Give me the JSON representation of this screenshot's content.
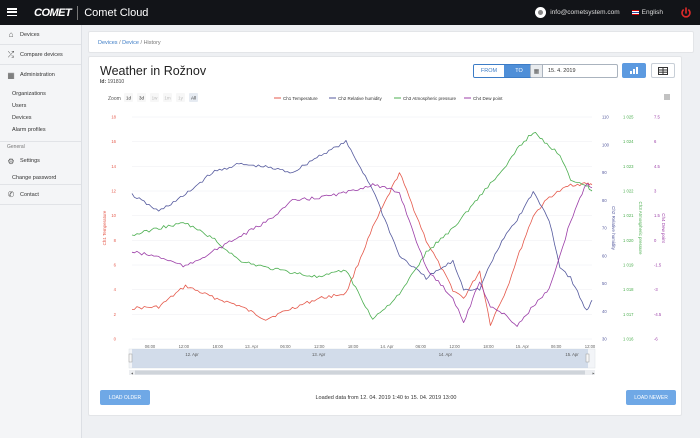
{
  "header": {
    "logo_text": "COMET",
    "app_name": "Comet Cloud",
    "email": "info@cometsystem.com",
    "language": "English"
  },
  "sidebar": {
    "items": [
      {
        "label": "Devices",
        "icon": "home-icon"
      },
      {
        "label": "Compare devices",
        "icon": "compare-icon"
      },
      {
        "label": "Administration",
        "icon": "grid-icon"
      }
    ],
    "admin_sub": [
      "Organizations",
      "Users",
      "Devices",
      "Alarm profiles"
    ],
    "general_label": "General",
    "settings_label": "Settings",
    "change_password": "Change password",
    "contact_label": "Contact"
  },
  "breadcrumb": {
    "devices": "Devices",
    "device": "Device",
    "history": "History"
  },
  "page": {
    "title": "Weather in Rožnov",
    "id_label": "Id:",
    "id_value": "191810",
    "from_label": "FROM",
    "to_label": "TO",
    "date_value": "15. 4. 2019",
    "footer_text": "Loaded data from 12. 04. 2019 1:40 to 15. 04. 2019 13:00",
    "load_older": "LOAD OLDER",
    "load_newer": "LOAD NEWER"
  },
  "chart_data": {
    "type": "line",
    "zoom_label": "Zoom",
    "zoom_options": [
      "1d",
      "3d",
      "1w",
      "1m",
      "1y",
      "All"
    ],
    "selected_zoom": "All",
    "x_ticks": [
      "06:00",
      "12:00",
      "18:00",
      "13. Apr",
      "06:00",
      "12:00",
      "18:00",
      "14. Apr",
      "06:00",
      "12:00",
      "18:00",
      "15. Apr",
      "06:00",
      "12:00"
    ],
    "navigator_ticks": [
      "12. Apr",
      "13. Apr",
      "14. Apr",
      "15. Apr"
    ],
    "x_hours": [
      0,
      5,
      10,
      15,
      20,
      25,
      30,
      35,
      40,
      45,
      50,
      55,
      60,
      62,
      65,
      67,
      70,
      72,
      75,
      78,
      80,
      82,
      85,
      86
    ],
    "axes": [
      {
        "name": "Ch1 Temperature",
        "unit_label": "Ch1 Temperature",
        "ticks": [
          "18",
          "16",
          "14",
          "12",
          "10",
          "8",
          "6",
          "4",
          "2",
          "0"
        ],
        "min": 0,
        "max": 18,
        "color": "#e55a4c"
      },
      {
        "name": "Ch2 Relative humidity",
        "unit_label": "Ch2 Relative humidity",
        "ticks": [
          "110",
          "100",
          "90",
          "80",
          "70",
          "60",
          "50",
          "40",
          "30"
        ],
        "min": 30,
        "max": 110,
        "color": "#555a9e"
      },
      {
        "name": "Ch3 Atmospheric pressure",
        "unit_label": "Ch3 Atmospheric pressure",
        "ticks": [
          "1 025",
          "1 024",
          "1 023",
          "1 022",
          "1 021",
          "1 020",
          "1 019",
          "1 018",
          "1 017",
          "1 016"
        ],
        "min": 1016,
        "max": 1025,
        "color": "#4caf50"
      },
      {
        "name": "Ch4 Dew point",
        "unit_label": "Ch4 Dew point",
        "ticks": [
          "7.5",
          "6",
          "4.5",
          "3",
          "1.5",
          "0",
          "-1.5",
          "-3",
          "-4.5",
          "-6"
        ],
        "min": -6,
        "max": 7.5,
        "color": "#9c3fa8"
      }
    ],
    "series": [
      {
        "name": "Ch1 Temperature",
        "color": "#e55a4c",
        "axis": 0,
        "values": [
          2.5,
          2.6,
          4.3,
          3.4,
          2.7,
          1.6,
          2.5,
          3.3,
          3.7,
          9.0,
          13.5,
          8.0,
          4.0,
          3.3,
          5.5,
          1.2,
          4.0,
          6.5,
          10.0,
          11.5,
          12.0,
          12.5,
          12.6,
          12.5
        ]
      },
      {
        "name": "Ch2 Relative humidity",
        "color": "#555a9e",
        "axis": 1,
        "values": [
          82,
          76,
          82,
          90,
          93,
          92,
          90,
          96,
          101,
          84,
          60,
          52,
          58,
          48,
          48,
          57,
          68,
          73,
          83,
          73,
          56,
          52,
          40,
          44
        ]
      },
      {
        "name": "Ch3 Atmospheric pressure",
        "color": "#4caf50",
        "axis": 2,
        "values": [
          1020.2,
          1020.5,
          1020.7,
          1020.1,
          1019.2,
          1018.9,
          1018.7,
          1018.5,
          1018.8,
          1016.8,
          1017.8,
          1019.5,
          1020.5,
          1021.0,
          1021.8,
          1022.3,
          1023.0,
          1023.7,
          1024.4,
          1023.8,
          1023.5,
          1022.5,
          1022.2,
          1022.0
        ]
      },
      {
        "name": "Ch4 Dew point",
        "color": "#9c3fa8",
        "axis": 3,
        "values": [
          -0.7,
          -1.0,
          -1.6,
          -0.7,
          0.2,
          1.1,
          2.4,
          2.6,
          2.9,
          3.4,
          2.9,
          -1.7,
          -3.5,
          -5.0,
          -2.5,
          -4.0,
          -4.6,
          -5.2,
          -4.0,
          -3.0,
          -1.0,
          1.2,
          3.5,
          3.2
        ]
      }
    ]
  }
}
